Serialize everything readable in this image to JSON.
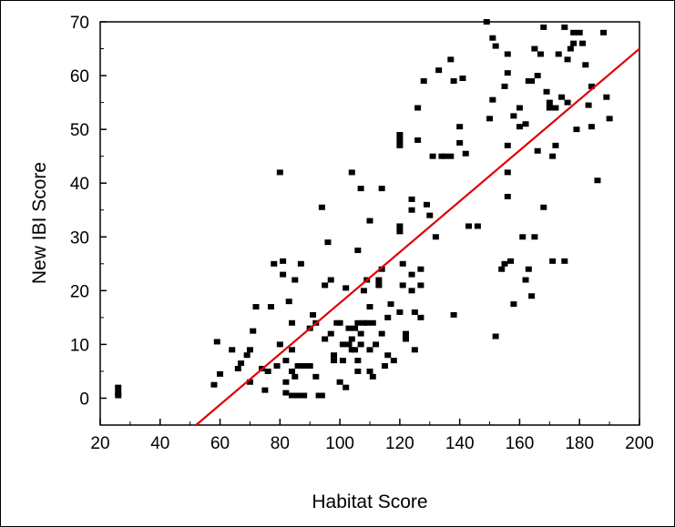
{
  "chart_data": {
    "type": "scatter",
    "title": "",
    "xlabel": "Habitat Score",
    "ylabel": "New IBI Score",
    "xlim": [
      20,
      200
    ],
    "ylim": [
      -5,
      70
    ],
    "xticks": [
      20,
      40,
      60,
      80,
      100,
      120,
      140,
      160,
      180,
      200
    ],
    "yticks": [
      0,
      10,
      20,
      30,
      40,
      50,
      60,
      70
    ],
    "grid": false,
    "legend": "none",
    "point_color": "#000000",
    "line_color": "#e00000",
    "trendline": {
      "type": "linear",
      "points": [
        [
          52,
          -5
        ],
        [
          200,
          65
        ]
      ]
    },
    "points": [
      [
        26,
        2
      ],
      [
        26,
        1
      ],
      [
        26,
        0.5
      ],
      [
        58,
        2.5
      ],
      [
        59,
        10.5
      ],
      [
        60,
        4.5
      ],
      [
        64,
        9
      ],
      [
        66,
        5.5
      ],
      [
        67,
        6.5
      ],
      [
        69,
        8
      ],
      [
        70,
        9
      ],
      [
        70,
        3
      ],
      [
        71,
        12.5
      ],
      [
        72,
        17
      ],
      [
        74,
        5.5
      ],
      [
        75,
        1.5
      ],
      [
        76,
        5
      ],
      [
        77,
        17
      ],
      [
        78,
        25
      ],
      [
        79,
        6
      ],
      [
        80,
        10
      ],
      [
        80,
        42
      ],
      [
        81,
        25.5
      ],
      [
        81,
        23
      ],
      [
        82,
        7
      ],
      [
        82,
        3
      ],
      [
        82,
        1
      ],
      [
        83,
        18
      ],
      [
        84,
        14
      ],
      [
        84,
        9
      ],
      [
        84,
        5
      ],
      [
        84,
        0.5
      ],
      [
        85,
        22
      ],
      [
        85,
        4
      ],
      [
        86,
        0.5
      ],
      [
        86,
        6
      ],
      [
        87,
        25
      ],
      [
        88,
        0.5
      ],
      [
        88,
        6
      ],
      [
        90,
        13
      ],
      [
        90,
        6
      ],
      [
        91,
        15.5
      ],
      [
        92,
        14
      ],
      [
        92,
        4
      ],
      [
        93,
        0.5
      ],
      [
        94,
        35.5
      ],
      [
        94,
        0.5
      ],
      [
        95,
        21
      ],
      [
        95,
        11
      ],
      [
        96,
        29
      ],
      [
        97,
        22
      ],
      [
        97,
        12
      ],
      [
        98,
        8
      ],
      [
        98,
        7
      ],
      [
        99,
        14
      ],
      [
        100,
        14
      ],
      [
        100,
        3
      ],
      [
        101,
        10
      ],
      [
        101,
        7
      ],
      [
        102,
        20.5
      ],
      [
        102,
        2
      ],
      [
        103,
        13
      ],
      [
        103,
        10
      ],
      [
        104,
        42
      ],
      [
        104,
        11
      ],
      [
        104,
        9
      ],
      [
        105,
        9
      ],
      [
        105,
        13
      ],
      [
        106,
        27.5
      ],
      [
        106,
        14
      ],
      [
        106,
        7
      ],
      [
        106,
        5
      ],
      [
        107,
        39
      ],
      [
        107,
        12
      ],
      [
        107,
        10
      ],
      [
        108,
        14
      ],
      [
        108,
        20
      ],
      [
        109,
        22
      ],
      [
        109,
        14
      ],
      [
        110,
        33
      ],
      [
        110,
        5
      ],
      [
        110,
        17
      ],
      [
        110,
        9
      ],
      [
        111,
        14
      ],
      [
        111,
        4
      ],
      [
        112,
        10
      ],
      [
        113,
        21
      ],
      [
        113,
        22
      ],
      [
        114,
        24
      ],
      [
        114,
        39
      ],
      [
        114,
        12
      ],
      [
        115,
        6
      ],
      [
        116,
        15
      ],
      [
        116,
        8
      ],
      [
        117,
        17.5
      ],
      [
        118,
        7
      ],
      [
        120,
        49
      ],
      [
        120,
        48
      ],
      [
        120,
        47
      ],
      [
        120,
        32
      ],
      [
        120,
        31
      ],
      [
        120,
        16
      ],
      [
        121,
        25
      ],
      [
        121,
        21
      ],
      [
        122,
        12
      ],
      [
        122,
        11
      ],
      [
        124,
        37
      ],
      [
        124,
        35
      ],
      [
        124,
        23
      ],
      [
        124,
        20
      ],
      [
        125,
        16
      ],
      [
        125,
        9
      ],
      [
        126,
        54
      ],
      [
        126,
        48
      ],
      [
        127,
        24
      ],
      [
        127,
        21
      ],
      [
        127,
        15
      ],
      [
        128,
        59
      ],
      [
        129,
        36
      ],
      [
        130,
        34
      ],
      [
        131,
        45
      ],
      [
        132,
        30
      ],
      [
        133,
        61
      ],
      [
        134,
        45
      ],
      [
        135,
        45
      ],
      [
        137,
        45
      ],
      [
        137,
        63
      ],
      [
        138,
        59
      ],
      [
        138,
        15.5
      ],
      [
        140,
        50.5
      ],
      [
        140,
        47.5
      ],
      [
        141,
        59.5
      ],
      [
        142,
        45.5
      ],
      [
        143,
        32
      ],
      [
        146,
        32
      ],
      [
        149,
        70
      ],
      [
        150,
        52
      ],
      [
        151,
        55.5
      ],
      [
        151,
        67
      ],
      [
        152,
        65.5
      ],
      [
        152,
        11.5
      ],
      [
        154,
        24
      ],
      [
        155,
        58
      ],
      [
        155,
        25
      ],
      [
        156,
        64
      ],
      [
        156,
        60.5
      ],
      [
        156,
        47
      ],
      [
        156,
        42
      ],
      [
        156,
        37.5
      ],
      [
        157,
        25.5
      ],
      [
        158,
        52.5
      ],
      [
        158,
        17.5
      ],
      [
        160,
        54
      ],
      [
        160,
        50.5
      ],
      [
        161,
        30
      ],
      [
        162,
        51
      ],
      [
        162,
        22
      ],
      [
        163,
        59
      ],
      [
        163,
        24
      ],
      [
        164,
        59
      ],
      [
        164,
        19
      ],
      [
        165,
        65
      ],
      [
        165,
        30
      ],
      [
        166,
        60
      ],
      [
        166,
        46
      ],
      [
        167,
        64
      ],
      [
        168,
        69
      ],
      [
        168,
        35.5
      ],
      [
        169,
        57
      ],
      [
        170,
        54
      ],
      [
        170,
        55
      ],
      [
        171,
        45
      ],
      [
        171,
        25.5
      ],
      [
        172,
        47
      ],
      [
        172,
        54
      ],
      [
        173,
        64
      ],
      [
        174,
        56
      ],
      [
        175,
        69
      ],
      [
        175,
        25.5
      ],
      [
        176,
        63
      ],
      [
        176,
        55
      ],
      [
        177,
        65
      ],
      [
        178,
        68
      ],
      [
        178,
        66
      ],
      [
        179,
        50
      ],
      [
        180,
        68
      ],
      [
        181,
        66
      ],
      [
        182,
        62
      ],
      [
        183,
        54.5
      ],
      [
        184,
        58
      ],
      [
        184,
        50.5
      ],
      [
        186,
        40.5
      ],
      [
        188,
        68
      ],
      [
        189,
        56
      ],
      [
        190,
        52
      ]
    ]
  }
}
